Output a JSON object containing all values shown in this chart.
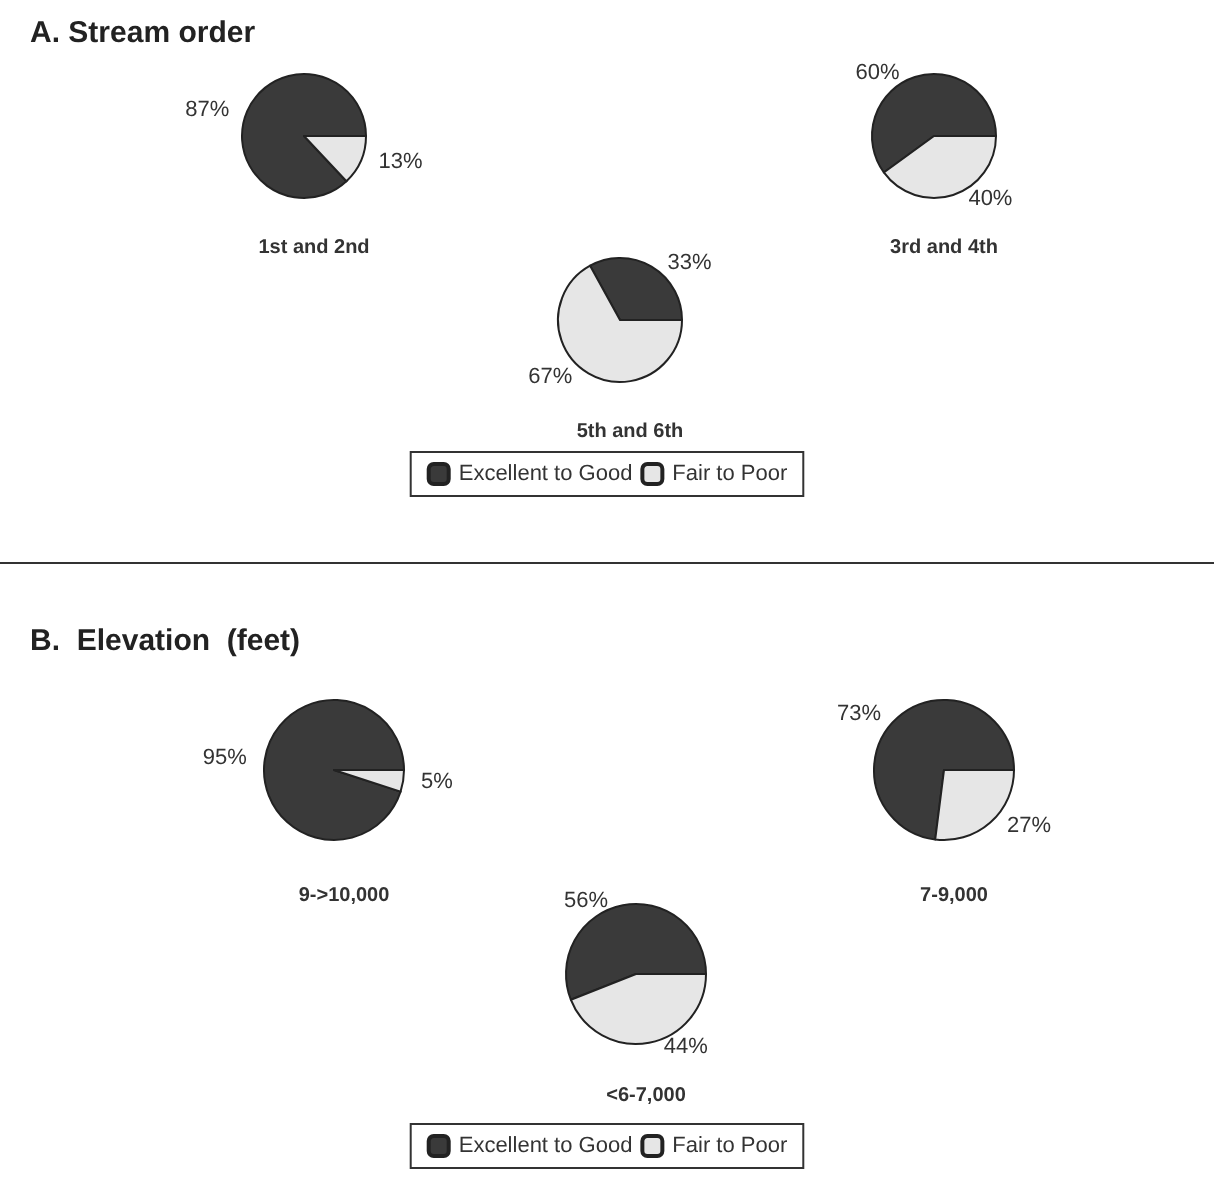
{
  "chart_data": [
    {
      "type": "pie",
      "title": "A. Stream order",
      "categories": [
        "Excellent to Good",
        "Fair to Poor"
      ],
      "colors": [
        "#3a3a3a",
        "#e6e6e6"
      ],
      "legend": "bottom",
      "series": [
        {
          "name": "1st and 2nd",
          "values": [
            87,
            13
          ],
          "value_labels": [
            "87%",
            "13%"
          ]
        },
        {
          "name": "3rd and 4th",
          "values": [
            60,
            40
          ],
          "value_labels": [
            "60%",
            "40%"
          ]
        },
        {
          "name": "5th and 6th",
          "values": [
            33,
            67
          ],
          "value_labels": [
            "33%",
            "67%"
          ]
        }
      ]
    },
    {
      "type": "pie",
      "title": "B.  Elevation  (feet)",
      "categories": [
        "Excellent to Good",
        "Fair to Poor"
      ],
      "colors": [
        "#3a3a3a",
        "#e6e6e6"
      ],
      "legend": "bottom",
      "series": [
        {
          "name": "9->10,000",
          "values": [
            95,
            5
          ],
          "value_labels": [
            "95%",
            "5%"
          ]
        },
        {
          "name": "7-9,000",
          "values": [
            73,
            27
          ],
          "value_labels": [
            "73%",
            "27%"
          ]
        },
        {
          "name": "<6-7,000",
          "values": [
            56,
            44
          ],
          "value_labels": [
            "56%",
            "44%"
          ]
        }
      ]
    }
  ]
}
